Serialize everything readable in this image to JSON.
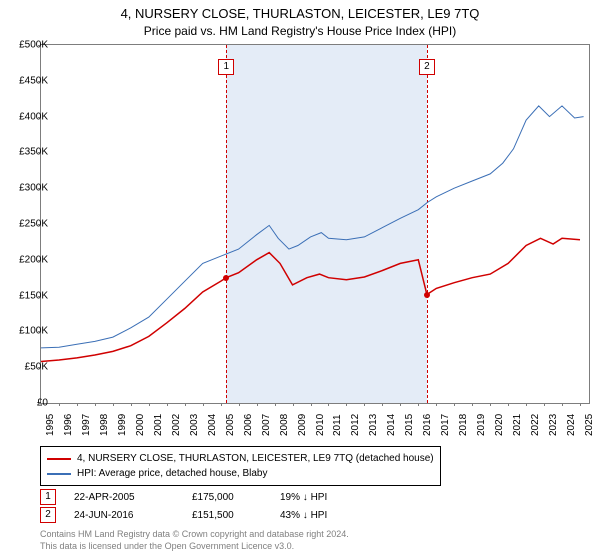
{
  "title_line1": "4, NURSERY CLOSE, THURLASTON, LEICESTER, LE9 7TQ",
  "title_line2": "Price paid vs. HM Land Registry's House Price Index (HPI)",
  "chart": {
    "type": "line",
    "background_color": "#ffffff",
    "plot_border_color": "#7d7d7d",
    "shade_color": "#e4ecf7",
    "vdash_color": "#d00000",
    "x_min": 1995,
    "x_max": 2025.5,
    "y_min": 0,
    "y_max": 500000,
    "y_ticks": [
      0,
      50000,
      100000,
      150000,
      200000,
      250000,
      300000,
      350000,
      400000,
      450000,
      500000
    ],
    "y_tick_labels": [
      "£0",
      "£50K",
      "£100K",
      "£150K",
      "£200K",
      "£250K",
      "£300K",
      "£350K",
      "£400K",
      "£450K",
      "£500K"
    ],
    "x_ticks": [
      1995,
      1996,
      1997,
      1998,
      1999,
      2000,
      2001,
      2002,
      2003,
      2004,
      2005,
      2006,
      2007,
      2008,
      2009,
      2010,
      2011,
      2012,
      2013,
      2014,
      2015,
      2016,
      2017,
      2018,
      2019,
      2020,
      2021,
      2022,
      2023,
      2024,
      2025
    ],
    "tick_font_size": 10,
    "series_hpi": {
      "label": "HPI: Average price, detached house, Blaby",
      "color": "#3b6fb6",
      "width": 1,
      "points": [
        [
          1995,
          77000
        ],
        [
          1996,
          78000
        ],
        [
          1997,
          82000
        ],
        [
          1998,
          86000
        ],
        [
          1999,
          92000
        ],
        [
          2000,
          105000
        ],
        [
          2001,
          120000
        ],
        [
          2002,
          145000
        ],
        [
          2003,
          170000
        ],
        [
          2004,
          195000
        ],
        [
          2005,
          205000
        ],
        [
          2006,
          215000
        ],
        [
          2007,
          235000
        ],
        [
          2007.7,
          248000
        ],
        [
          2008.2,
          230000
        ],
        [
          2008.8,
          215000
        ],
        [
          2009.3,
          220000
        ],
        [
          2010,
          232000
        ],
        [
          2010.6,
          238000
        ],
        [
          2011,
          230000
        ],
        [
          2012,
          228000
        ],
        [
          2013,
          232000
        ],
        [
          2014,
          245000
        ],
        [
          2015,
          258000
        ],
        [
          2016,
          270000
        ],
        [
          2016.5,
          280000
        ],
        [
          2017,
          288000
        ],
        [
          2018,
          300000
        ],
        [
          2019,
          310000
        ],
        [
          2020,
          320000
        ],
        [
          2020.7,
          335000
        ],
        [
          2021.3,
          355000
        ],
        [
          2022,
          395000
        ],
        [
          2022.7,
          415000
        ],
        [
          2023.3,
          400000
        ],
        [
          2024,
          415000
        ],
        [
          2024.7,
          398000
        ],
        [
          2025.2,
          400000
        ]
      ]
    },
    "series_subject": {
      "label": "4, NURSERY CLOSE, THURLASTON, LEICESTER, LE9 7TQ (detached house)",
      "color": "#d00000",
      "width": 1.5,
      "points": [
        [
          1995,
          58000
        ],
        [
          1996,
          60000
        ],
        [
          1997,
          63000
        ],
        [
          1998,
          67000
        ],
        [
          1999,
          72000
        ],
        [
          2000,
          80000
        ],
        [
          2001,
          93000
        ],
        [
          2002,
          112000
        ],
        [
          2003,
          132000
        ],
        [
          2004,
          155000
        ],
        [
          2005,
          170000
        ],
        [
          2005.31,
          175000
        ],
        [
          2006,
          182000
        ],
        [
          2007,
          200000
        ],
        [
          2007.7,
          210000
        ],
        [
          2008.3,
          195000
        ],
        [
          2009,
          165000
        ],
        [
          2009.8,
          175000
        ],
        [
          2010.5,
          180000
        ],
        [
          2011,
          175000
        ],
        [
          2012,
          172000
        ],
        [
          2013,
          176000
        ],
        [
          2014,
          185000
        ],
        [
          2015,
          195000
        ],
        [
          2016,
          200000
        ],
        [
          2016.48,
          151500
        ],
        [
          2017,
          160000
        ],
        [
          2018,
          168000
        ],
        [
          2019,
          175000
        ],
        [
          2020,
          180000
        ],
        [
          2021,
          195000
        ],
        [
          2022,
          220000
        ],
        [
          2022.8,
          230000
        ],
        [
          2023.5,
          222000
        ],
        [
          2024,
          230000
        ],
        [
          2025,
          228000
        ]
      ]
    },
    "sales": [
      {
        "n": "1",
        "year": 2005.31,
        "price": 175000,
        "date": "22-APR-2005",
        "price_label": "£175,000",
        "delta": "19% ↓ HPI"
      },
      {
        "n": "2",
        "year": 2016.48,
        "price": 151500,
        "date": "24-JUN-2016",
        "price_label": "£151,500",
        "delta": "43% ↓ HPI"
      }
    ],
    "shade_start": 2005.31,
    "shade_end": 2016.48
  },
  "attribution": {
    "line1": "Contains HM Land Registry data © Crown copyright and database right 2024.",
    "line2": "This data is licensed under the Open Government Licence v3.0."
  }
}
